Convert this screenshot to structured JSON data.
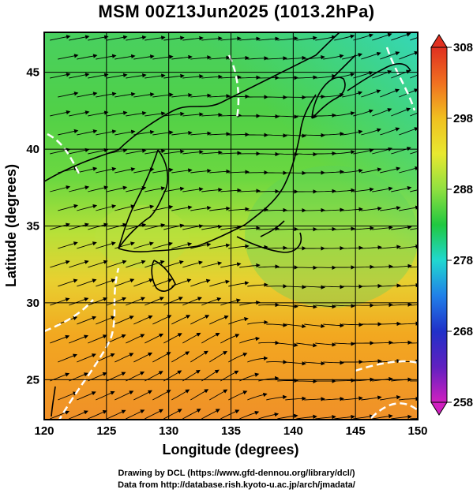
{
  "title": "MSM 00Z13Jun2025 (1013.2hPa)",
  "x_axis": {
    "label": "Longitude (degrees)",
    "ticks": [
      120,
      125,
      130,
      135,
      140,
      145,
      150
    ],
    "range": [
      120,
      150
    ]
  },
  "y_axis": {
    "label": "Latitude  (degrees)",
    "ticks": [
      25,
      30,
      35,
      40,
      45
    ],
    "range": [
      22.4,
      47.6
    ]
  },
  "colorbar": {
    "ticks": [
      308,
      298,
      288,
      278,
      268,
      258
    ],
    "range": [
      258,
      308
    ],
    "extend": "both"
  },
  "credits": {
    "line1": "Drawing by DCL (https://www.gfd-dennou.org/library/dcl/)",
    "line2": "Data from http://database.rish.kyoto-u.ac.jp/arch/jmadata/"
  },
  "colors": {
    "warm": "#f2a020",
    "mid": "#d8e030",
    "cool": "#40d040",
    "coldest": "#30e8c0",
    "streamline": "#000000",
    "coastline": "#000000",
    "contour": "#ffffff"
  }
}
